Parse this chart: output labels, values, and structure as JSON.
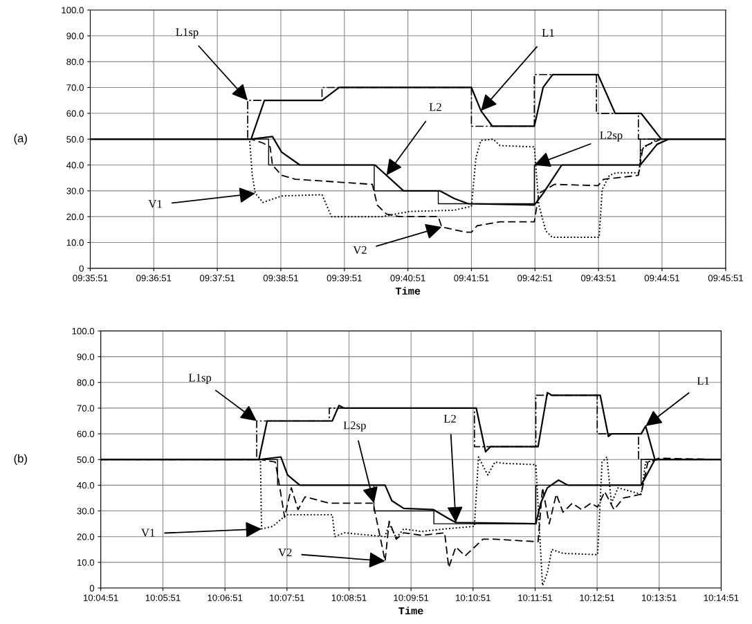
{
  "chart_data": [
    {
      "type": "line",
      "xlabel": "Time",
      "grid": true,
      "ylim": [
        0,
        100
      ],
      "yticks": [
        0,
        {
          "value": 10,
          "label": "10.0"
        },
        {
          "value": 20,
          "label": "20.0"
        },
        {
          "value": 30,
          "label": "30.0"
        },
        {
          "value": 40,
          "label": "40.0"
        },
        {
          "value": 50,
          "label": "50.0"
        },
        {
          "value": 60,
          "label": "60.0"
        },
        {
          "value": 70,
          "label": "70.0"
        },
        {
          "value": 80,
          "label": "80.0"
        },
        {
          "value": 90,
          "label": "90.0"
        },
        {
          "value": 100,
          "label": "100.0"
        }
      ],
      "xlim": [
        9.5975,
        9.7642
      ],
      "xticks": [
        {
          "value": 9.5975,
          "label": "09:35:51"
        },
        {
          "value": 9.614167,
          "label": "09:36:51"
        },
        {
          "value": 9.630833,
          "label": "09:37:51"
        },
        {
          "value": 9.6475,
          "label": "09:38:51"
        },
        {
          "value": 9.664167,
          "label": "09:39:51"
        },
        {
          "value": 9.680833,
          "label": "09:40:51"
        },
        {
          "value": 9.6975,
          "label": "09:41:51"
        },
        {
          "value": 9.714167,
          "label": "09:42:51"
        },
        {
          "value": 9.730833,
          "label": "09:43:51"
        },
        {
          "value": 9.7475,
          "label": "09:44:51"
        },
        {
          "value": 9.7642,
          "label": "09:45:51"
        }
      ],
      "series": [
        {
          "color": "#000000",
          "line_style": "dashdot",
          "x": [
            9.5975,
            9.6388,
            9.6388,
            9.6583,
            9.6583,
            9.6975,
            9.6975,
            9.714,
            9.714,
            9.7303,
            9.7303,
            9.7413,
            9.7413,
            9.7642
          ],
          "values": [
            50,
            50,
            65,
            65,
            70,
            70,
            55,
            55,
            75,
            75,
            60,
            60,
            50,
            50
          ]
        },
        {
          "color": "#000000",
          "line_style": "solid",
          "x": [
            9.5975,
            9.6397,
            9.6432,
            9.6583,
            9.6628,
            9.6975,
            9.7,
            9.703,
            9.714,
            9.7163,
            9.7188,
            9.7307,
            9.7352,
            9.742,
            9.7473,
            9.7642
          ],
          "values": [
            50,
            50,
            65,
            65,
            70,
            70,
            61,
            55,
            55,
            70,
            75,
            75,
            60,
            60,
            50,
            50
          ]
        },
        {
          "color": "#000000",
          "line_style": "solid",
          "x": [
            9.5975,
            9.6443,
            9.6443,
            9.672,
            9.672,
            9.6888,
            9.6888,
            9.714,
            9.714,
            9.7418,
            9.7418,
            9.7642
          ],
          "values": [
            50,
            50,
            40,
            40,
            30,
            30,
            25,
            25,
            40,
            40,
            50,
            50
          ]
        },
        {
          "color": "#000000",
          "line_style": "solid",
          "x": [
            9.5975,
            9.6397,
            9.6453,
            9.6477,
            9.6525,
            9.6722,
            9.6752,
            9.6797,
            9.6892,
            9.693,
            9.6967,
            9.714,
            9.7163,
            9.7212,
            9.7418,
            9.7462,
            9.7492,
            9.7642
          ],
          "values": [
            50,
            50,
            51,
            45,
            40,
            40,
            36,
            30,
            30,
            27,
            25,
            24.5,
            29,
            40,
            40,
            48,
            50,
            50
          ]
        },
        {
          "color": "#000000",
          "line_style": "dotted",
          "x": [
            9.5975,
            9.6393,
            9.64,
            9.6408,
            9.6428,
            9.6477,
            9.6583,
            9.6608,
            9.674,
            9.6812,
            9.693,
            9.6975,
            9.6987,
            9.7,
            9.7032,
            9.705,
            9.714,
            9.7152,
            9.717,
            9.7187,
            9.731,
            9.7318,
            9.7337,
            9.7355,
            9.7415,
            9.742,
            9.7462,
            9.7642
          ],
          "values": [
            50,
            50,
            36,
            29,
            25.5,
            28,
            28.5,
            20,
            20,
            22,
            22.5,
            24,
            43,
            49.5,
            50,
            47.5,
            47,
            24.5,
            14.5,
            12,
            12,
            30.5,
            36,
            37,
            37,
            46,
            50,
            50
          ]
        },
        {
          "color": "#000000",
          "line_style": "dashed",
          "x": [
            9.5975,
            9.6397,
            9.6428,
            9.6447,
            9.6453,
            9.6477,
            9.6513,
            9.6715,
            9.6728,
            9.6752,
            9.6787,
            9.6888,
            9.6897,
            9.696,
            9.6975,
            9.699,
            9.705,
            9.714,
            9.7152,
            9.7193,
            9.7307,
            9.7322,
            9.7355,
            9.7413,
            9.7425,
            9.7473,
            9.7642
          ],
          "values": [
            50,
            50,
            48.5,
            47,
            40,
            36,
            34.5,
            32.5,
            24.5,
            21,
            20,
            20,
            16,
            14,
            14,
            16.5,
            18,
            18,
            29,
            32.5,
            32,
            34.5,
            35,
            36,
            47,
            50,
            50
          ]
        }
      ],
      "annotations": [
        "(a)",
        {
          "text": "L1sp",
          "x": 9.6388,
          "y": 65
        },
        {
          "text": "L1",
          "x": 9.7,
          "y": 61
        },
        {
          "text": "L2",
          "x": 9.6752,
          "y": 36
        },
        {
          "text": "L2sp",
          "x": 9.714,
          "y": 40
        },
        {
          "text": "V1",
          "x": 9.6408,
          "y": 29
        },
        {
          "text": "V2",
          "x": 9.6897,
          "y": 16
        }
      ]
    },
    {
      "type": "line",
      "xlabel": "Time",
      "grid": true,
      "ylim": [
        0,
        100
      ],
      "yticks": [
        0,
        {
          "value": 10,
          "label": "10.0"
        },
        {
          "value": 20,
          "label": "20.0"
        },
        {
          "value": 30,
          "label": "30.0"
        },
        {
          "value": 40,
          "label": "40.0"
        },
        {
          "value": 50,
          "label": "50.0"
        },
        {
          "value": 60,
          "label": "60.0"
        },
        {
          "value": 70,
          "label": "70.0"
        },
        {
          "value": 80,
          "label": "80.0"
        },
        {
          "value": 90,
          "label": "90.0"
        },
        {
          "value": 100,
          "label": "100.0"
        }
      ],
      "xlim": [
        10.0808,
        10.2475
      ],
      "xticks": [
        {
          "value": 10.0808,
          "label": "10:04:51"
        },
        {
          "value": 10.0975,
          "label": "10:05:51"
        },
        {
          "value": 10.114167,
          "label": "10:06:51"
        },
        {
          "value": 10.130833,
          "label": "10:07:51"
        },
        {
          "value": 10.1475,
          "label": "10:08:51"
        },
        {
          "value": 10.164167,
          "label": "10:09:51"
        },
        {
          "value": 10.180833,
          "label": "10:10:51"
        },
        {
          "value": 10.1975,
          "label": "10:11:51"
        },
        {
          "value": 10.214167,
          "label": "10:12:51"
        },
        {
          "value": 10.230833,
          "label": "10:13:51"
        },
        {
          "value": 10.2475,
          "label": "10:14:51"
        }
      ],
      "series": [
        {
          "color": "#000000",
          "line_style": "dashdot",
          "x": [
            10.0808,
            10.1227,
            10.1227,
            10.1422,
            10.1422,
            10.1812,
            10.1812,
            10.1977,
            10.1977,
            10.2142,
            10.2142,
            10.2253,
            10.2253,
            10.2475
          ],
          "values": [
            50,
            50,
            65,
            65,
            70,
            70,
            55,
            55,
            75,
            75,
            60,
            60,
            50,
            50
          ]
        },
        {
          "color": "#000000",
          "line_style": "solid",
          "x": [
            10.0808,
            10.1233,
            10.1255,
            10.143,
            10.1448,
            10.1462,
            10.1817,
            10.1842,
            10.1855,
            10.1983,
            10.2008,
            10.202,
            10.215,
            10.2172,
            10.218,
            10.226,
            10.2272,
            10.2297,
            10.2475
          ],
          "values": [
            50,
            50,
            65,
            65,
            71,
            70,
            70,
            53,
            55,
            55,
            76,
            75,
            75,
            59,
            60,
            60,
            63,
            50,
            50
          ]
        },
        {
          "color": "#000000",
          "line_style": "solid",
          "x": [
            10.0808,
            10.1283,
            10.1283,
            10.1542,
            10.1542,
            10.1703,
            10.1703,
            10.1977,
            10.1977,
            10.226,
            10.226,
            10.2475
          ],
          "values": [
            50,
            50,
            40,
            40,
            30,
            30,
            25,
            25,
            40,
            40,
            50,
            50
          ]
        },
        {
          "color": "#000000",
          "line_style": "solid",
          "x": [
            10.0808,
            10.1233,
            10.1292,
            10.131,
            10.1343,
            10.1572,
            10.159,
            10.1622,
            10.1702,
            10.1743,
            10.1762,
            10.1977,
            10.199,
            10.2008,
            10.2038,
            10.2063,
            10.226,
            10.2297,
            10.2475
          ],
          "values": [
            50,
            50,
            51,
            44,
            40,
            40,
            34,
            31,
            30.5,
            27,
            25.5,
            25,
            33,
            39,
            42,
            40,
            40,
            50,
            50
          ]
        },
        {
          "color": "#000000",
          "line_style": "dotted",
          "x": [
            10.0808,
            10.1237,
            10.124,
            10.127,
            10.1307,
            10.143,
            10.1437,
            10.1462,
            10.1572,
            10.1583,
            10.1602,
            10.1622,
            10.167,
            10.1732,
            10.1812,
            10.1823,
            10.1835,
            10.1848,
            10.1867,
            10.1892,
            10.1977,
            10.1995,
            10.2008,
            10.202,
            10.205,
            10.2143,
            10.2155,
            10.2168,
            10.218,
            10.2198,
            10.226,
            10.2272,
            10.2308,
            10.2475
          ],
          "values": [
            50,
            50,
            23,
            24,
            28.5,
            28.5,
            20,
            21.5,
            20,
            25,
            19.5,
            23,
            22,
            23,
            24,
            51,
            47.5,
            44,
            49,
            48.5,
            48,
            1,
            6,
            15,
            13.5,
            13,
            49,
            51,
            33,
            39,
            36.5,
            49,
            50,
            50
          ]
        },
        {
          "color": "#000000",
          "line_style": "dashed",
          "x": [
            10.0808,
            10.1237,
            10.1277,
            10.1288,
            10.1302,
            10.132,
            10.1338,
            10.1357,
            10.1423,
            10.154,
            10.1572,
            10.1583,
            10.1602,
            10.1622,
            10.167,
            10.1732,
            10.1743,
            10.1762,
            10.1787,
            10.1835,
            10.1867,
            10.1983,
            10.1995,
            10.2013,
            10.2032,
            10.205,
            10.2075,
            10.21,
            10.2125,
            10.2143,
            10.2162,
            10.2187,
            10.2212,
            10.226,
            10.2278,
            10.2308,
            10.2475
          ],
          "values": [
            50,
            50,
            49,
            40,
            27.5,
            39,
            30.5,
            35.5,
            33,
            33,
            10.5,
            26,
            19,
            21.5,
            20.5,
            21.5,
            8,
            16,
            12.5,
            19,
            19,
            18,
            39,
            25,
            36.5,
            29.5,
            33,
            30.5,
            33,
            31.5,
            37.5,
            30.5,
            35,
            36.5,
            49,
            50.5,
            50
          ]
        }
      ],
      "annotations": [
        "(b)",
        {
          "text": "L1sp",
          "x": 10.1227,
          "y": 65
        },
        {
          "text": "L2sp",
          "x": 10.1542,
          "y": 33
        },
        {
          "text": "L2",
          "x": 10.1762,
          "y": 25.5
        },
        {
          "text": "L1",
          "x": 10.2272,
          "y": 63
        },
        {
          "text": "V1",
          "x": 10.124,
          "y": 23
        },
        {
          "text": "V2",
          "x": 10.1572,
          "y": 10.5
        }
      ]
    }
  ]
}
